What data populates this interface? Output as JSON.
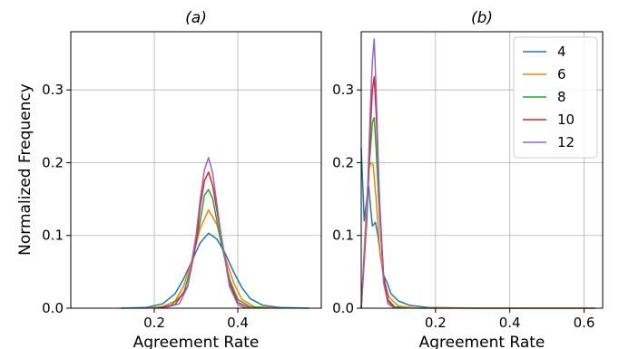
{
  "chart_data": [
    {
      "type": "line",
      "title": "(a)",
      "xlabel": "Agreement Rate",
      "ylabel": "Normalized Frequency",
      "xlim": [
        0.0,
        0.6
      ],
      "ylim": [
        0.0,
        0.38
      ],
      "xticks": [
        0.2,
        0.4
      ],
      "xtick_labels": [
        "0.2",
        "0.4"
      ],
      "yticks": [
        0.0,
        0.1,
        0.2,
        0.3
      ],
      "ytick_labels": [
        "0.0",
        "0.1",
        "0.2",
        "0.3"
      ],
      "grid": true,
      "series": [
        {
          "name": "4",
          "color": "#1f77b4",
          "points": [
            [
              0.12,
              0.0
            ],
            [
              0.18,
              0.001
            ],
            [
              0.22,
              0.006
            ],
            [
              0.25,
              0.02
            ],
            [
              0.27,
              0.04
            ],
            [
              0.29,
              0.065
            ],
            [
              0.31,
              0.09
            ],
            [
              0.33,
              0.103
            ],
            [
              0.35,
              0.095
            ],
            [
              0.37,
              0.075
            ],
            [
              0.39,
              0.05
            ],
            [
              0.41,
              0.028
            ],
            [
              0.43,
              0.013
            ],
            [
              0.46,
              0.004
            ],
            [
              0.5,
              0.001
            ],
            [
              0.57,
              0.0
            ]
          ]
        },
        {
          "name": "6",
          "color": "#ff7f0e",
          "points": [
            [
              0.18,
              0.0
            ],
            [
              0.22,
              0.002
            ],
            [
              0.25,
              0.01
            ],
            [
              0.27,
              0.03
            ],
            [
              0.29,
              0.065
            ],
            [
              0.31,
              0.11
            ],
            [
              0.33,
              0.135
            ],
            [
              0.35,
              0.115
            ],
            [
              0.37,
              0.07
            ],
            [
              0.39,
              0.035
            ],
            [
              0.41,
              0.012
            ],
            [
              0.44,
              0.002
            ],
            [
              0.5,
              0.0
            ]
          ]
        },
        {
          "name": "8",
          "color": "#2ca02c",
          "points": [
            [
              0.2,
              0.0
            ],
            [
              0.24,
              0.004
            ],
            [
              0.27,
              0.02
            ],
            [
              0.29,
              0.06
            ],
            [
              0.31,
              0.12
            ],
            [
              0.32,
              0.155
            ],
            [
              0.33,
              0.163
            ],
            [
              0.34,
              0.15
            ],
            [
              0.36,
              0.09
            ],
            [
              0.38,
              0.04
            ],
            [
              0.4,
              0.012
            ],
            [
              0.43,
              0.002
            ],
            [
              0.47,
              0.0
            ]
          ]
        },
        {
          "name": "10",
          "color": "#d62728",
          "points": [
            [
              0.21,
              0.0
            ],
            [
              0.25,
              0.005
            ],
            [
              0.28,
              0.03
            ],
            [
              0.3,
              0.09
            ],
            [
              0.31,
              0.14
            ],
            [
              0.32,
              0.175
            ],
            [
              0.33,
              0.187
            ],
            [
              0.34,
              0.168
            ],
            [
              0.36,
              0.1
            ],
            [
              0.38,
              0.035
            ],
            [
              0.4,
              0.008
            ],
            [
              0.43,
              0.0
            ]
          ]
        },
        {
          "name": "12",
          "color": "#9467bd",
          "points": [
            [
              0.22,
              0.0
            ],
            [
              0.26,
              0.006
            ],
            [
              0.28,
              0.03
            ],
            [
              0.3,
              0.1
            ],
            [
              0.31,
              0.15
            ],
            [
              0.32,
              0.19
            ],
            [
              0.33,
              0.207
            ],
            [
              0.34,
              0.185
            ],
            [
              0.36,
              0.1
            ],
            [
              0.38,
              0.03
            ],
            [
              0.4,
              0.005
            ],
            [
              0.42,
              0.0
            ]
          ]
        }
      ]
    },
    {
      "type": "line",
      "title": "(b)",
      "xlabel": "Agreement Rate",
      "ylabel": "",
      "xlim": [
        0.0,
        0.65
      ],
      "ylim": [
        0.0,
        0.38
      ],
      "xticks": [
        0.2,
        0.4,
        0.6
      ],
      "xtick_labels": [
        "0.2",
        "0.4",
        "0.6"
      ],
      "yticks": [
        0.0,
        0.1,
        0.2,
        0.3
      ],
      "ytick_labels": [
        "0.0",
        "0.1",
        "0.2",
        "0.3"
      ],
      "grid": true,
      "legend_position": "top-right",
      "series": [
        {
          "name": "4",
          "color": "#1f77b4",
          "points": [
            [
              0.0,
              0.22
            ],
            [
              0.008,
              0.12
            ],
            [
              0.015,
              0.15
            ],
            [
              0.02,
              0.168
            ],
            [
              0.025,
              0.14
            ],
            [
              0.03,
              0.113
            ],
            [
              0.038,
              0.118
            ],
            [
              0.045,
              0.1
            ],
            [
              0.052,
              0.07
            ],
            [
              0.06,
              0.045
            ],
            [
              0.07,
              0.035
            ],
            [
              0.08,
              0.02
            ],
            [
              0.1,
              0.01
            ],
            [
              0.13,
              0.004
            ],
            [
              0.18,
              0.001
            ],
            [
              0.3,
              0.0
            ],
            [
              0.63,
              0.0
            ]
          ]
        },
        {
          "name": "6",
          "color": "#ff7f0e",
          "points": [
            [
              0.0,
              0.0
            ],
            [
              0.01,
              0.1
            ],
            [
              0.02,
              0.19
            ],
            [
              0.025,
              0.2
            ],
            [
              0.032,
              0.198
            ],
            [
              0.04,
              0.15
            ],
            [
              0.05,
              0.08
            ],
            [
              0.06,
              0.04
            ],
            [
              0.075,
              0.015
            ],
            [
              0.1,
              0.003
            ],
            [
              0.15,
              0.0
            ],
            [
              0.3,
              0.0
            ],
            [
              0.63,
              0.0
            ]
          ]
        },
        {
          "name": "8",
          "color": "#2ca02c",
          "points": [
            [
              0.0,
              0.0
            ],
            [
              0.012,
              0.1
            ],
            [
              0.022,
              0.2
            ],
            [
              0.03,
              0.255
            ],
            [
              0.035,
              0.262
            ],
            [
              0.04,
              0.22
            ],
            [
              0.05,
              0.12
            ],
            [
              0.06,
              0.045
            ],
            [
              0.072,
              0.012
            ],
            [
              0.09,
              0.002
            ],
            [
              0.12,
              0.0
            ]
          ]
        },
        {
          "name": "10",
          "color": "#d62728",
          "points": [
            [
              0.0,
              0.0
            ],
            [
              0.015,
              0.12
            ],
            [
              0.025,
              0.25
            ],
            [
              0.03,
              0.3
            ],
            [
              0.035,
              0.318
            ],
            [
              0.04,
              0.27
            ],
            [
              0.05,
              0.14
            ],
            [
              0.06,
              0.045
            ],
            [
              0.072,
              0.01
            ],
            [
              0.09,
              0.0
            ]
          ]
        },
        {
          "name": "12",
          "color": "#9467bd",
          "points": [
            [
              0.0,
              0.0
            ],
            [
              0.015,
              0.13
            ],
            [
              0.025,
              0.28
            ],
            [
              0.03,
              0.34
            ],
            [
              0.035,
              0.37
            ],
            [
              0.04,
              0.3
            ],
            [
              0.05,
              0.13
            ],
            [
              0.06,
              0.035
            ],
            [
              0.072,
              0.006
            ],
            [
              0.09,
              0.0
            ]
          ]
        }
      ]
    }
  ]
}
